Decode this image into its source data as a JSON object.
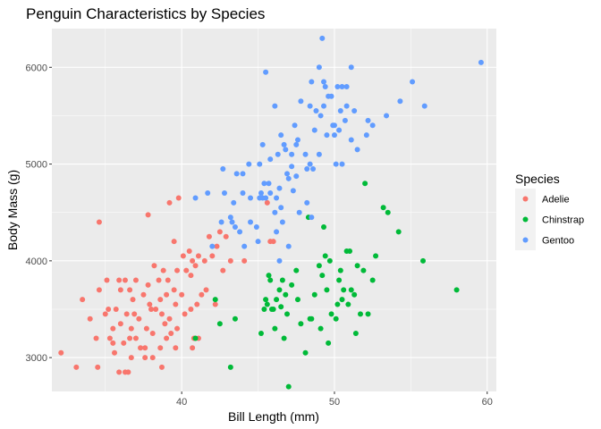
{
  "chart_data": {
    "type": "scatter",
    "title": "Penguin Characteristics by Species",
    "xlabel": "Bill Length (mm)",
    "ylabel": "Body Mass (g)",
    "xlim": [
      31.5,
      60.6
    ],
    "ylim": [
      2650,
      6400
    ],
    "x_ticks": [
      40,
      50,
      60
    ],
    "y_ticks": [
      3000,
      4000,
      5000,
      6000
    ],
    "grid": true,
    "legend": {
      "title": "Species",
      "placement": "right"
    },
    "series": [
      {
        "name": "Adelie",
        "color": "#F8766D",
        "points": [
          [
            32.1,
            3050
          ],
          [
            33.1,
            2900
          ],
          [
            33.5,
            3600
          ],
          [
            34.0,
            3400
          ],
          [
            34.4,
            3200
          ],
          [
            34.5,
            2900
          ],
          [
            34.6,
            4400
          ],
          [
            34.6,
            3700
          ],
          [
            35.0,
            3450
          ],
          [
            35.1,
            3800
          ],
          [
            35.2,
            3500
          ],
          [
            35.3,
            3200
          ],
          [
            35.5,
            3300
          ],
          [
            35.5,
            3150
          ],
          [
            35.6,
            3050
          ],
          [
            35.7,
            3500
          ],
          [
            35.9,
            3800
          ],
          [
            36.0,
            3700
          ],
          [
            36.0,
            3350
          ],
          [
            36.2,
            3150
          ],
          [
            36.3,
            3800
          ],
          [
            36.4,
            3450
          ],
          [
            36.5,
            2850
          ],
          [
            36.6,
            3700
          ],
          [
            36.6,
            3200
          ],
          [
            36.7,
            3300
          ],
          [
            36.7,
            3000
          ],
          [
            36.8,
            3600
          ],
          [
            36.9,
            3450
          ],
          [
            37.0,
            3800
          ],
          [
            37.0,
            3200
          ],
          [
            37.2,
            3400
          ],
          [
            37.3,
            3100
          ],
          [
            37.5,
            3650
          ],
          [
            37.6,
            3000
          ],
          [
            37.7,
            3300
          ],
          [
            37.8,
            3750
          ],
          [
            37.8,
            4475
          ],
          [
            37.9,
            3550
          ],
          [
            38.0,
            3500
          ],
          [
            38.1,
            3250
          ],
          [
            38.2,
            3950
          ],
          [
            38.3,
            3500
          ],
          [
            38.5,
            3800
          ],
          [
            38.6,
            3600
          ],
          [
            38.6,
            3100
          ],
          [
            38.7,
            3450
          ],
          [
            38.8,
            3900
          ],
          [
            38.9,
            3350
          ],
          [
            39.0,
            3650
          ],
          [
            39.0,
            3200
          ],
          [
            39.1,
            3800
          ],
          [
            39.2,
            4600
          ],
          [
            39.2,
            3400
          ],
          [
            39.3,
            3250
          ],
          [
            39.5,
            4200
          ],
          [
            39.5,
            3700
          ],
          [
            39.6,
            3550
          ],
          [
            39.7,
            3900
          ],
          [
            39.7,
            3300
          ],
          [
            39.8,
            4650
          ],
          [
            40.0,
            3650
          ],
          [
            40.1,
            4050
          ],
          [
            40.2,
            3450
          ],
          [
            40.3,
            3900
          ],
          [
            40.5,
            4100
          ],
          [
            40.6,
            3850
          ],
          [
            40.6,
            3500
          ],
          [
            40.7,
            4000
          ],
          [
            40.8,
            3200
          ],
          [
            40.9,
            3950
          ],
          [
            41.0,
            3550
          ],
          [
            41.1,
            4050
          ],
          [
            41.1,
            3200
          ],
          [
            41.3,
            3650
          ],
          [
            41.5,
            4000
          ],
          [
            41.6,
            3700
          ],
          [
            41.8,
            4250
          ],
          [
            42.0,
            4050
          ],
          [
            42.2,
            3550
          ],
          [
            42.3,
            4150
          ],
          [
            42.5,
            4300
          ],
          [
            42.7,
            3900
          ],
          [
            42.9,
            4250
          ],
          [
            43.2,
            4000
          ],
          [
            44.1,
            4000
          ],
          [
            45.6,
            4600
          ],
          [
            45.8,
            4200
          ],
          [
            46.0,
            4200
          ],
          [
            35.9,
            2850
          ],
          [
            36.3,
            2850
          ],
          [
            37.6,
            3100
          ],
          [
            38.1,
            3000
          ],
          [
            38.7,
            2900
          ],
          [
            39.6,
            3100
          ],
          [
            40.7,
            3100
          ]
        ]
      },
      {
        "name": "Chinstrap",
        "color": "#00BA38",
        "points": [
          [
            40.9,
            3200
          ],
          [
            42.2,
            3600
          ],
          [
            42.5,
            3350
          ],
          [
            43.2,
            2900
          ],
          [
            43.5,
            3400
          ],
          [
            45.2,
            3250
          ],
          [
            45.4,
            3500
          ],
          [
            45.5,
            3600
          ],
          [
            45.6,
            3550
          ],
          [
            45.7,
            3850
          ],
          [
            45.8,
            3800
          ],
          [
            46.0,
            3500
          ],
          [
            46.1,
            3300
          ],
          [
            46.4,
            3700
          ],
          [
            46.5,
            3525
          ],
          [
            46.6,
            3800
          ],
          [
            46.7,
            3200
          ],
          [
            46.8,
            3650
          ],
          [
            46.9,
            3450
          ],
          [
            47.0,
            2700
          ],
          [
            47.5,
            3900
          ],
          [
            47.8,
            3350
          ],
          [
            48.1,
            3050
          ],
          [
            48.5,
            3400
          ],
          [
            48.7,
            3650
          ],
          [
            49.0,
            3950
          ],
          [
            49.1,
            3300
          ],
          [
            49.2,
            3850
          ],
          [
            49.5,
            3700
          ],
          [
            49.7,
            4000
          ],
          [
            49.8,
            3450
          ],
          [
            50.1,
            3400
          ],
          [
            50.3,
            3800
          ],
          [
            50.5,
            3600
          ],
          [
            50.6,
            3700
          ],
          [
            50.8,
            4100
          ],
          [
            50.9,
            3550
          ],
          [
            51.0,
            4100
          ],
          [
            51.3,
            3650
          ],
          [
            51.4,
            3250
          ],
          [
            51.5,
            3950
          ],
          [
            51.7,
            3450
          ],
          [
            51.9,
            3900
          ],
          [
            52.0,
            4800
          ],
          [
            52.2,
            3450
          ],
          [
            52.7,
            4050
          ],
          [
            53.5,
            4500
          ],
          [
            54.2,
            4300
          ],
          [
            55.8,
            4000
          ],
          [
            58.0,
            3700
          ],
          [
            50.2,
            3550
          ],
          [
            49.6,
            3150
          ],
          [
            50.4,
            3900
          ],
          [
            46.2,
            3600
          ],
          [
            45.9,
            3500
          ],
          [
            48.3,
            4450
          ],
          [
            49.3,
            4350
          ],
          [
            47.2,
            3750
          ],
          [
            51.1,
            3700
          ],
          [
            52.5,
            3800
          ],
          [
            53.2,
            4550
          ],
          [
            49.4,
            4050
          ],
          [
            47.6,
            3600
          ],
          [
            48.4,
            3400
          ]
        ]
      },
      {
        "name": "Gentoo",
        "color": "#619CFF",
        "points": [
          [
            40.9,
            4650
          ],
          [
            41.7,
            4700
          ],
          [
            42.0,
            4150
          ],
          [
            42.6,
            4400
          ],
          [
            42.7,
            4950
          ],
          [
            43.2,
            4450
          ],
          [
            43.3,
            4400
          ],
          [
            43.4,
            4600
          ],
          [
            43.5,
            4350
          ],
          [
            43.6,
            4900
          ],
          [
            44.0,
            4900
          ],
          [
            44.4,
            5000
          ],
          [
            44.5,
            4650
          ],
          [
            44.9,
            4350
          ],
          [
            45.0,
            4200
          ],
          [
            45.1,
            5000
          ],
          [
            45.2,
            4700
          ],
          [
            45.3,
            5200
          ],
          [
            45.4,
            4800
          ],
          [
            45.5,
            4650
          ],
          [
            45.5,
            5950
          ],
          [
            45.7,
            4800
          ],
          [
            45.8,
            4700
          ],
          [
            46.1,
            4500
          ],
          [
            46.2,
            4300
          ],
          [
            46.3,
            5100
          ],
          [
            46.4,
            4750
          ],
          [
            46.5,
            4550
          ],
          [
            46.5,
            5300
          ],
          [
            46.6,
            4400
          ],
          [
            46.8,
            5150
          ],
          [
            46.9,
            4900
          ],
          [
            47.0,
            4850
          ],
          [
            47.2,
            5100
          ],
          [
            47.3,
            4725
          ],
          [
            47.4,
            5400
          ],
          [
            47.5,
            5200
          ],
          [
            47.6,
            5250
          ],
          [
            47.7,
            4500
          ],
          [
            47.8,
            5650
          ],
          [
            48.1,
            5100
          ],
          [
            48.2,
            4600
          ],
          [
            48.4,
            5600
          ],
          [
            48.5,
            5850
          ],
          [
            48.6,
            4950
          ],
          [
            48.7,
            5350
          ],
          [
            48.8,
            5550
          ],
          [
            49.0,
            6000
          ],
          [
            49.1,
            5500
          ],
          [
            49.2,
            6300
          ],
          [
            49.3,
            5600
          ],
          [
            49.4,
            5800
          ],
          [
            49.5,
            5300
          ],
          [
            49.6,
            5700
          ],
          [
            49.8,
            5700
          ],
          [
            50.0,
            5400
          ],
          [
            50.1,
            5000
          ],
          [
            50.2,
            5800
          ],
          [
            50.3,
            5350
          ],
          [
            50.4,
            5550
          ],
          [
            50.5,
            5000
          ],
          [
            50.7,
            5450
          ],
          [
            50.8,
            5600
          ],
          [
            51.1,
            6000
          ],
          [
            51.3,
            5550
          ],
          [
            51.5,
            5150
          ],
          [
            52.1,
            5300
          ],
          [
            52.2,
            5450
          ],
          [
            52.5,
            5400
          ],
          [
            53.4,
            5500
          ],
          [
            54.3,
            5650
          ],
          [
            55.1,
            5850
          ],
          [
            55.9,
            5600
          ],
          [
            59.6,
            6050
          ],
          [
            46.1,
            5600
          ],
          [
            44.1,
            4150
          ],
          [
            46.4,
            4000
          ],
          [
            47.0,
            4150
          ],
          [
            48.2,
            4950
          ],
          [
            48.5,
            4450
          ],
          [
            49.0,
            5100
          ],
          [
            49.3,
            5850
          ],
          [
            50.0,
            5300
          ],
          [
            50.5,
            5800
          ],
          [
            51.1,
            5250
          ],
          [
            43.8,
            4300
          ],
          [
            44.5,
            4400
          ],
          [
            45.1,
            4650
          ],
          [
            46.7,
            5200
          ],
          [
            47.5,
            4875
          ],
          [
            45.3,
            4650
          ],
          [
            45.8,
            5050
          ],
          [
            47.2,
            4975
          ],
          [
            48.4,
            5000
          ],
          [
            49.9,
            5400
          ],
          [
            50.8,
            5800
          ],
          [
            46.2,
            4650
          ],
          [
            44.0,
            4700
          ],
          [
            42.8,
            4700
          ]
        ]
      }
    ]
  }
}
